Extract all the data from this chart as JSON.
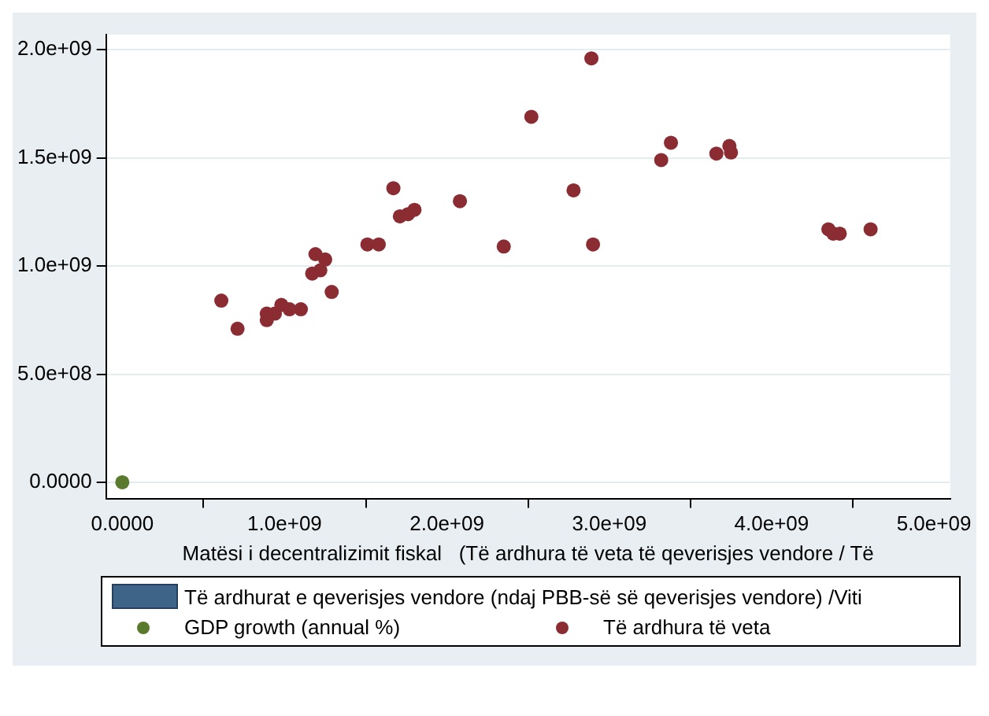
{
  "chart_data": {
    "type": "scatter",
    "xlabel": "Matësi i decentralizimit fiskal   (Të ardhura të veta të qeverisjes vendore / Të",
    "xlim": [
      -100000000.0,
      5100000000.0
    ],
    "ylim": [
      -75000000.0,
      2070000000.0
    ],
    "xticks": [
      {
        "value": 0,
        "label": "0.0000"
      },
      {
        "value": 1000000000.0,
        "label": "1.0e+09"
      },
      {
        "value": 2000000000.0,
        "label": "2.0e+09"
      },
      {
        "value": 3000000000.0,
        "label": "3.0e+09"
      },
      {
        "value": 4000000000.0,
        "label": "4.0e+09"
      },
      {
        "value": 5000000000.0,
        "label": "5.0e+09"
      }
    ],
    "yticks": [
      {
        "value": 0,
        "label": "0.0000"
      },
      {
        "value": 500000000.0,
        "label": "5.0e+08"
      },
      {
        "value": 1000000000.0,
        "label": "1.0e+09"
      },
      {
        "value": 1500000000.0,
        "label": "1.5e+09"
      },
      {
        "value": 2000000000.0,
        "label": "2.0e+09"
      }
    ],
    "grid": "y",
    "legend": "bottom",
    "marker": "circle",
    "series": [
      {
        "name": "Të ardhurat e qeverisjes vendore (ndaj PBB-së së qeverisjes vendore) /Viti",
        "type": "bar",
        "color": "#3e6487"
      },
      {
        "name": "GDP growth (annual %)",
        "color": "#5a7a2e",
        "x": [
          0
        ],
        "values": [
          0
        ]
      },
      {
        "name": "Të ardhura të veta",
        "color": "#8b2c33",
        "x": [
          610000000.0,
          710000000.0,
          890000000.0,
          890000000.0,
          940000000.0,
          980000000.0,
          1030000000.0,
          1100000000.0,
          1170000000.0,
          1190000000.0,
          1220000000.0,
          1250000000.0,
          1290000000.0,
          1510000000.0,
          1580000000.0,
          1670000000.0,
          1710000000.0,
          1760000000.0,
          1800000000.0,
          2080000000.0,
          2350000000.0,
          2890000000.0,
          2520000000.0,
          2780000000.0,
          2900000000.0,
          3320000000.0,
          3380000000.0,
          3660000000.0,
          3740000000.0,
          3750000000.0,
          4350000000.0,
          4380000000.0,
          4420000000.0,
          4610000000.0
        ],
        "values": [
          840000000.0,
          710000000.0,
          780000000.0,
          750000000.0,
          780000000.0,
          820000000.0,
          800000000.0,
          800000000.0,
          965000000.0,
          1055000000.0,
          980000000.0,
          1030000000.0,
          880000000.0,
          1100000000.0,
          1100000000.0,
          1360000000.0,
          1230000000.0,
          1240000000.0,
          1260000000.0,
          1300000000.0,
          1090000000.0,
          1960000000.0,
          1690000000.0,
          1350000000.0,
          1100000000.0,
          1490000000.0,
          1570000000.0,
          1520000000.0,
          1555000000.0,
          1525000000.0,
          1170000000.0,
          1150000000.0,
          1150000000.0,
          1170000000.0
        ]
      }
    ]
  }
}
